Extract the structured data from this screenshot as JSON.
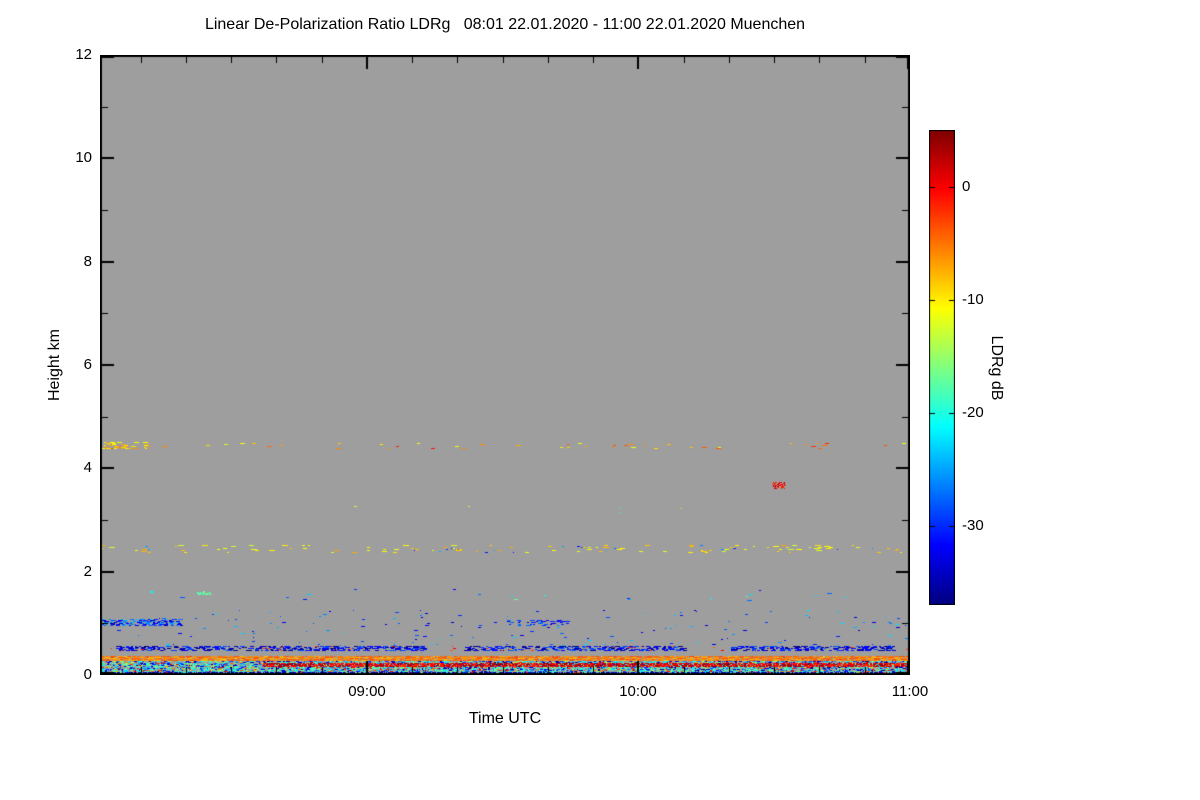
{
  "chart_data": {
    "type": "heatmap",
    "title": "Linear De-Polarization Ratio LDRg   08:01 22.01.2020 - 11:00 22.01.2020 Muenchen",
    "xlabel": "Time UTC",
    "ylabel": "Height km",
    "station": "Muenchen",
    "time_start": "08:01 22.01.2020",
    "time_end": "11:00 22.01.2020",
    "total_minutes": 179,
    "x_ticks": [
      {
        "label": "09:00",
        "minutes": 59
      },
      {
        "label": "10:00",
        "minutes": 119
      },
      {
        "label": "11:00",
        "minutes": 179
      }
    ],
    "ylim": [
      0,
      12
    ],
    "y_ticks": [
      0,
      2,
      4,
      6,
      8,
      10,
      12
    ],
    "background_color": "#9e9e9e",
    "grid": false,
    "colorbar": {
      "label": "LDRg dB",
      "ticks": [
        0,
        -10,
        -20,
        -30
      ],
      "vmax": 5,
      "vmin": -37,
      "colormap": "jet",
      "position": "right"
    },
    "features": [
      {
        "name": "surface-noise-cool",
        "h_km": [
          0.02,
          0.26
        ],
        "t": [
          0,
          1
        ],
        "density": 0.45,
        "db": [
          -37,
          -14
        ],
        "dash": [
          1,
          4
        ]
      },
      {
        "name": "surface-noise-green",
        "h_km": [
          0.04,
          0.22
        ],
        "t": [
          0,
          1
        ],
        "density": 0.1,
        "db": [
          -22,
          -16
        ],
        "dash": [
          1,
          3
        ]
      },
      {
        "name": "surface-noise-warm",
        "h_km": [
          0.02,
          0.24
        ],
        "t": [
          0,
          1
        ],
        "density": 0.05,
        "db": [
          -8,
          2
        ],
        "dash": [
          1,
          3
        ]
      },
      {
        "name": "surface-dark-line",
        "h_km": [
          0.0,
          0.05
        ],
        "t": [
          0,
          1
        ],
        "density": 0.6,
        "db": [
          -37,
          -33
        ],
        "dash": [
          1,
          4
        ]
      },
      {
        "name": "warm-line-lower",
        "h_km": [
          0.17,
          0.22
        ],
        "t": [
          0.2,
          1
        ],
        "density": 0.8,
        "db": [
          -2,
          4
        ],
        "dash": [
          2,
          6
        ]
      },
      {
        "name": "warm-line-main",
        "h_km": [
          0.29,
          0.36
        ],
        "t": [
          0,
          1
        ],
        "density": 0.92,
        "db": [
          -8,
          -3
        ],
        "dash": [
          2,
          6
        ]
      },
      {
        "name": "navy-band-05-a",
        "h_km": [
          0.47,
          0.56
        ],
        "t": [
          0.02,
          0.4
        ],
        "density": 0.3,
        "db": [
          -37,
          -28
        ],
        "dash": [
          2,
          7
        ]
      },
      {
        "name": "navy-band-05-b",
        "h_km": [
          0.47,
          0.56
        ],
        "t": [
          0.45,
          0.72
        ],
        "density": 0.28,
        "db": [
          -37,
          -27
        ],
        "dash": [
          2,
          7
        ]
      },
      {
        "name": "navy-band-05-c",
        "h_km": [
          0.47,
          0.56
        ],
        "t": [
          0.78,
          0.98
        ],
        "density": 0.3,
        "db": [
          -37,
          -28
        ],
        "dash": [
          2,
          7
        ]
      },
      {
        "name": "band-05-warm-specks",
        "h_km": [
          0.47,
          0.56
        ],
        "t": [
          0,
          1
        ],
        "density": 0.015,
        "db": [
          -6,
          0
        ],
        "dash": [
          1,
          3
        ]
      },
      {
        "name": "blue-1km-left",
        "h_km": [
          0.95,
          1.08
        ],
        "t": [
          0,
          0.1
        ],
        "density": 0.35,
        "db": [
          -35,
          -24
        ],
        "dash": [
          2,
          5
        ]
      },
      {
        "name": "blue-1km-mid",
        "h_km": [
          0.95,
          1.05
        ],
        "t": [
          0.5,
          0.58
        ],
        "density": 0.12,
        "db": [
          -34,
          -26
        ],
        "dash": [
          2,
          5
        ]
      },
      {
        "name": "sparse-cool-low",
        "h_km": [
          0.55,
          1.25
        ],
        "t": [
          0,
          1
        ],
        "density": 0.005,
        "db": [
          -34,
          -22
        ],
        "dash": [
          1,
          4
        ]
      },
      {
        "name": "speckle-1p5km",
        "h_km": [
          1.45,
          1.65
        ],
        "t": [
          0,
          1
        ],
        "density": 0.0025,
        "db": [
          -32,
          -17
        ],
        "dash": [
          2,
          5
        ]
      },
      {
        "name": "green-speck-1p6km",
        "h_km": [
          1.55,
          1.62
        ],
        "t": [
          0.12,
          0.135
        ],
        "density": 0.5,
        "db": [
          -19,
          -16
        ],
        "dash": [
          2,
          4
        ]
      },
      {
        "name": "speckle-2p4km-warm",
        "h_km": [
          2.38,
          2.5
        ],
        "t": [
          0,
          1
        ],
        "density": 0.018,
        "db": [
          -13,
          -7
        ],
        "dash": [
          2,
          6
        ]
      },
      {
        "name": "speckle-2p4km-cool",
        "h_km": [
          2.38,
          2.5
        ],
        "t": [
          0,
          1
        ],
        "density": 0.004,
        "db": [
          -32,
          -24
        ],
        "dash": [
          1,
          3
        ]
      },
      {
        "name": "speckle-3p2km",
        "h_km": [
          3.1,
          3.3
        ],
        "t": [
          0.3,
          0.75
        ],
        "density": 0.001,
        "db": [
          -24,
          -12
        ],
        "dash": [
          1,
          3
        ]
      },
      {
        "name": "red-speck-3p6km",
        "h_km": [
          3.6,
          3.72
        ],
        "t": [
          0.83,
          0.845
        ],
        "density": 0.5,
        "db": [
          -2,
          2
        ],
        "dash": [
          1,
          3
        ]
      },
      {
        "name": "speckle-4p4km",
        "h_km": [
          4.38,
          4.48
        ],
        "t": [
          0,
          1
        ],
        "density": 0.012,
        "db": [
          -13,
          -1
        ],
        "dash": [
          2,
          5
        ]
      },
      {
        "name": "speckle-4p4km-left",
        "h_km": [
          4.38,
          4.5
        ],
        "t": [
          0,
          0.06
        ],
        "density": 0.15,
        "db": [
          -12,
          -6
        ],
        "dash": [
          2,
          5
        ]
      }
    ]
  }
}
